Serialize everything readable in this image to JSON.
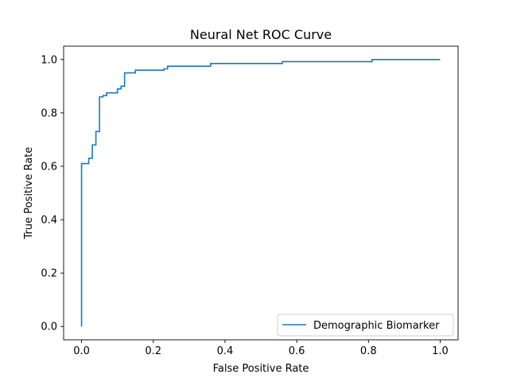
{
  "chart_data": {
    "type": "line",
    "title": "Neural Net ROC Curve",
    "xlabel": "False Positive Rate",
    "ylabel": "True Positive Rate",
    "xlim": [
      -0.05,
      1.05
    ],
    "ylim": [
      -0.05,
      1.05
    ],
    "x_ticks": [
      0.0,
      0.2,
      0.4,
      0.6,
      0.8,
      1.0
    ],
    "x_tick_labels": [
      "0.0",
      "0.2",
      "0.4",
      "0.6",
      "0.8",
      "1.0"
    ],
    "y_ticks": [
      0.0,
      0.2,
      0.4,
      0.6,
      0.8,
      1.0
    ],
    "y_tick_labels": [
      "0.0",
      "0.2",
      "0.4",
      "0.6",
      "0.8",
      "1.0"
    ],
    "grid": false,
    "legend_position": "lower-right",
    "series": [
      {
        "name": "Demographic Biomarker",
        "color": "#1f77b4",
        "step": true,
        "x": [
          0.0,
          0.0,
          0.01,
          0.01,
          0.02,
          0.02,
          0.03,
          0.03,
          0.04,
          0.04,
          0.05,
          0.05,
          0.06,
          0.06,
          0.07,
          0.07,
          0.08,
          0.08,
          0.1,
          0.1,
          0.11,
          0.11,
          0.12,
          0.12,
          0.14,
          0.14,
          0.15,
          0.15,
          0.22,
          0.22,
          0.23,
          0.23,
          0.24,
          0.24,
          0.36,
          0.36,
          0.56,
          0.56,
          0.81,
          0.81,
          1.0
        ],
        "y": [
          0.0,
          0.61,
          0.61,
          0.61,
          0.61,
          0.63,
          0.63,
          0.68,
          0.68,
          0.73,
          0.73,
          0.86,
          0.86,
          0.865,
          0.865,
          0.875,
          0.875,
          0.875,
          0.875,
          0.89,
          0.89,
          0.9,
          0.9,
          0.95,
          0.95,
          0.95,
          0.95,
          0.96,
          0.96,
          0.96,
          0.96,
          0.965,
          0.965,
          0.975,
          0.975,
          0.985,
          0.985,
          0.992,
          0.992,
          1.0,
          1.0
        ]
      }
    ]
  }
}
